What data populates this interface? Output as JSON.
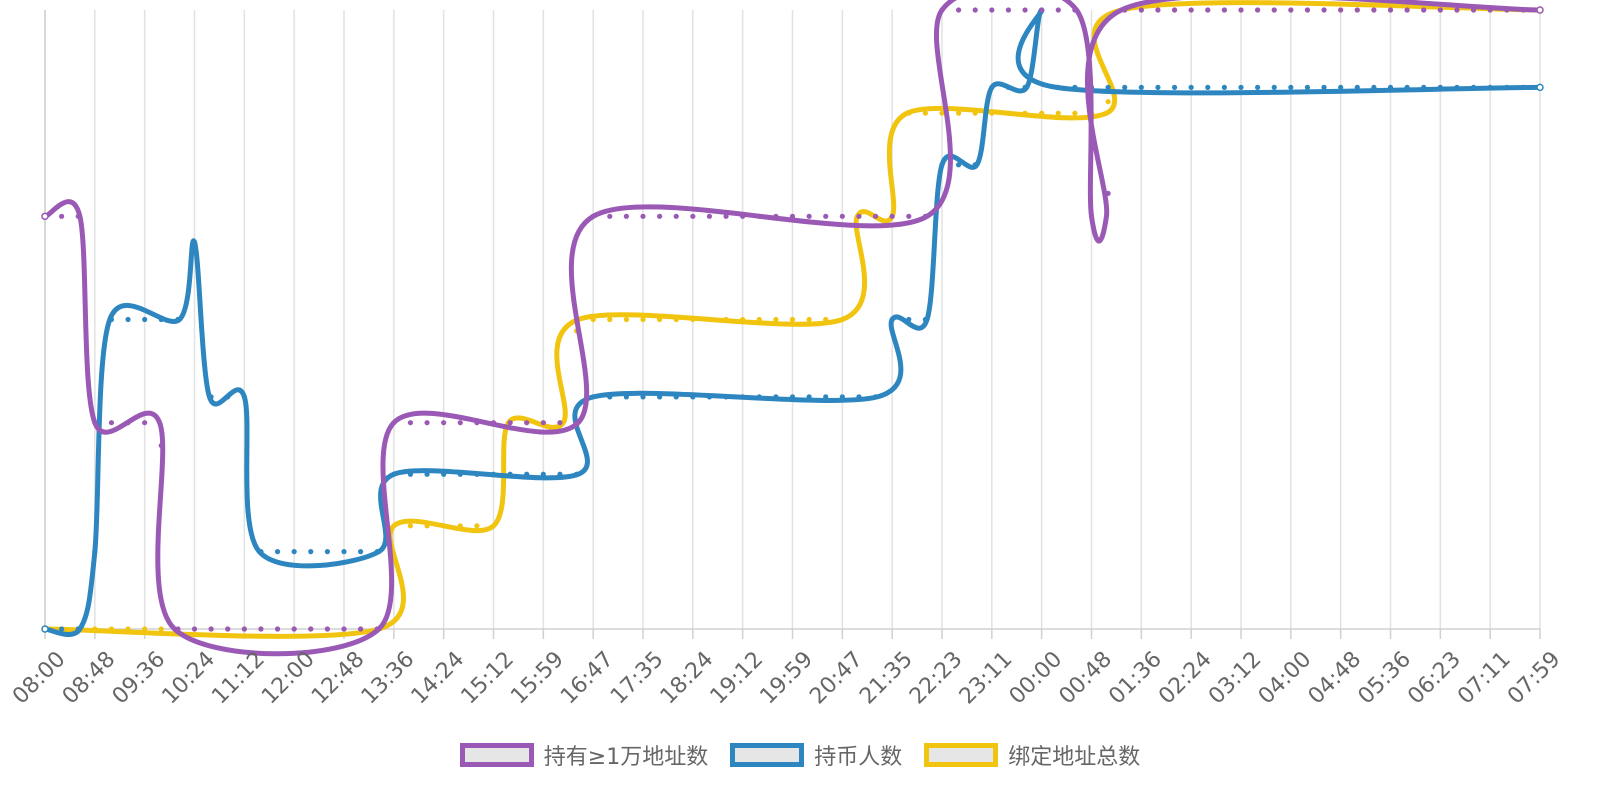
{
  "chart_data": {
    "type": "line",
    "x": [
      "08:00",
      "08:48",
      "09:36",
      "10:24",
      "11:12",
      "12:00",
      "12:48",
      "13:36",
      "14:24",
      "15:12",
      "15:59",
      "16:47",
      "17:35",
      "18:24",
      "19:12",
      "19:59",
      "20:47",
      "21:35",
      "22:23",
      "23:11",
      "00:00",
      "00:48",
      "01:36",
      "02:24",
      "03:12",
      "04:00",
      "04:48",
      "05:36",
      "06:23",
      "07:11",
      "07:59"
    ],
    "ylim": [
      0,
      12
    ],
    "grid": {
      "vertical": true,
      "horizontal": false
    },
    "legend_position": "bottom-center",
    "series": [
      {
        "name": "持有≥1万地址数",
        "color": "#9b59b6",
        "points": [
          [
            0,
            8
          ],
          [
            0.7,
            8
          ],
          [
            1,
            4
          ],
          [
            2.3,
            4
          ],
          [
            2.6,
            0
          ],
          [
            6.7,
            0
          ],
          [
            7,
            4
          ],
          [
            10.7,
            4
          ],
          [
            11,
            8
          ],
          [
            17.7,
            8
          ],
          [
            18,
            12
          ],
          [
            20.7,
            12
          ],
          [
            21,
            8
          ],
          [
            21.3,
            8
          ],
          [
            21.6,
            12
          ],
          [
            30,
            12
          ]
        ]
      },
      {
        "name": "持币人数",
        "color": "#2e86c1",
        "points": [
          [
            0,
            0
          ],
          [
            0.7,
            0
          ],
          [
            1,
            1.5
          ],
          [
            1.3,
            6
          ],
          [
            2.7,
            6
          ],
          [
            3,
            7.5
          ],
          [
            3.3,
            4.5
          ],
          [
            4,
            4.5
          ],
          [
            4.3,
            1.5
          ],
          [
            6.7,
            1.5
          ],
          [
            7,
            3
          ],
          [
            10.7,
            3
          ],
          [
            11,
            4.5
          ],
          [
            16.7,
            4.5
          ],
          [
            17,
            6
          ],
          [
            17.7,
            6
          ],
          [
            18,
            9
          ],
          [
            18.7,
            9
          ],
          [
            19,
            10.5
          ],
          [
            19.7,
            10.5
          ],
          [
            20,
            12
          ],
          [
            20.3,
            10.5
          ],
          [
            30,
            10.5
          ]
        ]
      },
      {
        "name": "绑定地址总数",
        "color": "#f1c40f",
        "points": [
          [
            0,
            0
          ],
          [
            6.7,
            0
          ],
          [
            7,
            2
          ],
          [
            9,
            2
          ],
          [
            9.3,
            4
          ],
          [
            10.4,
            4
          ],
          [
            10.7,
            6
          ],
          [
            16,
            6
          ],
          [
            16.3,
            8
          ],
          [
            17,
            8
          ],
          [
            17.3,
            10
          ],
          [
            21.3,
            10
          ],
          [
            21.6,
            12
          ],
          [
            30,
            12
          ]
        ]
      }
    ]
  }
}
